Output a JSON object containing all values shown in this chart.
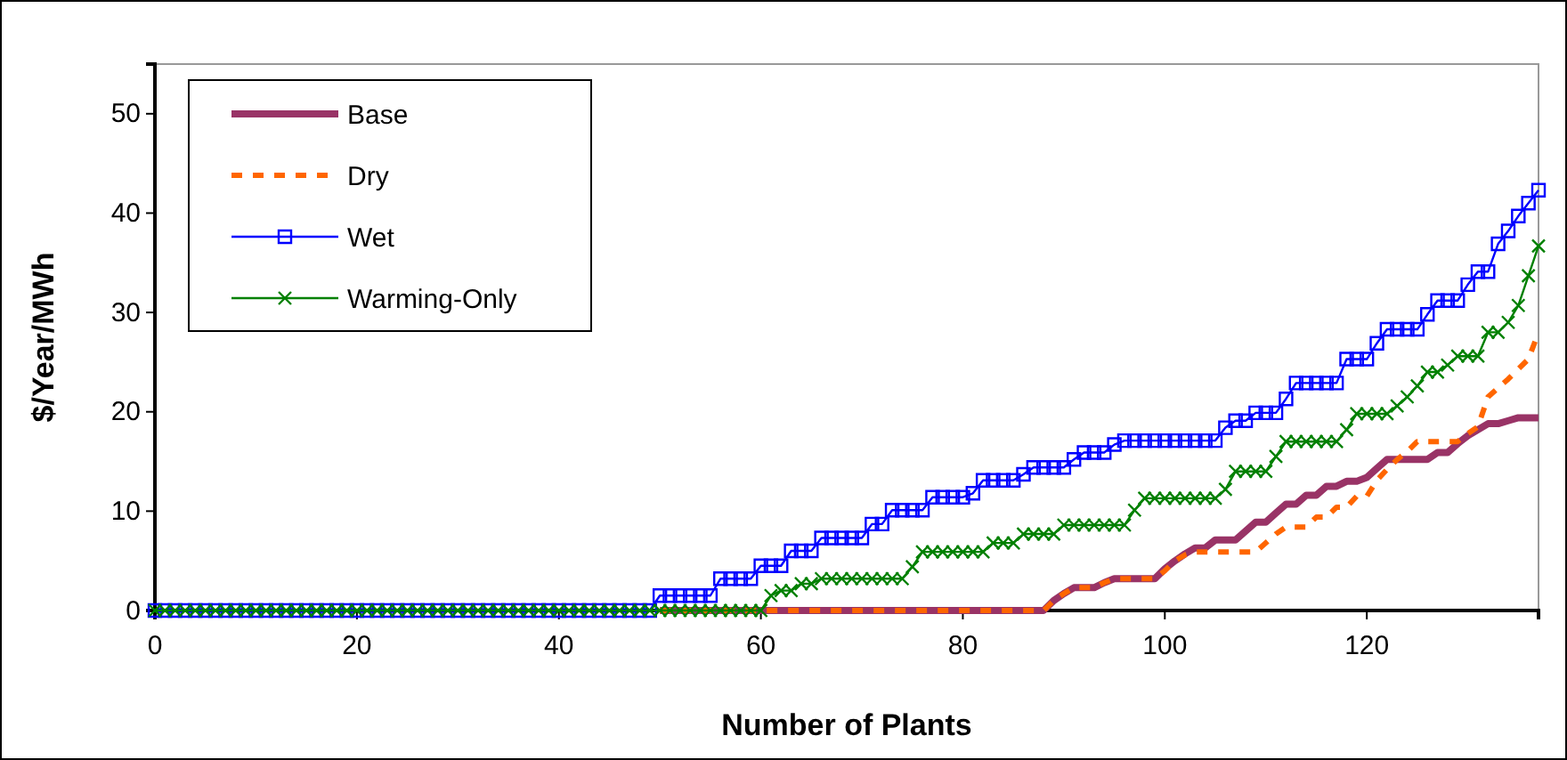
{
  "chart_data": {
    "type": "line",
    "xlabel": "Number of Plants",
    "ylabel": "$/Year/MWh",
    "x": [
      0,
      1,
      2,
      3,
      4,
      5,
      6,
      7,
      8,
      9,
      10,
      11,
      12,
      13,
      14,
      15,
      16,
      17,
      18,
      19,
      20,
      21,
      22,
      23,
      24,
      25,
      26,
      27,
      28,
      29,
      30,
      31,
      32,
      33,
      34,
      35,
      36,
      37,
      38,
      39,
      40,
      41,
      42,
      43,
      44,
      45,
      46,
      47,
      48,
      49,
      50,
      51,
      52,
      53,
      54,
      55,
      56,
      57,
      58,
      59,
      60,
      61,
      62,
      63,
      64,
      65,
      66,
      67,
      68,
      69,
      70,
      71,
      72,
      73,
      74,
      75,
      76,
      77,
      78,
      79,
      80,
      81,
      82,
      83,
      84,
      85,
      86,
      87,
      88,
      89,
      90,
      91,
      92,
      93,
      94,
      95,
      96,
      97,
      98,
      99,
      100,
      101,
      102,
      103,
      104,
      105,
      106,
      107,
      108,
      109,
      110,
      111,
      112,
      113,
      114,
      115,
      116,
      117,
      118,
      119,
      120,
      121,
      122,
      123,
      124,
      125,
      126,
      127,
      128,
      129,
      130,
      131,
      132,
      133,
      134,
      135,
      136,
      137
    ],
    "xlim": [
      0,
      137
    ],
    "xticks": [
      0,
      20,
      40,
      60,
      80,
      100,
      120
    ],
    "ylim": [
      0,
      55
    ],
    "yticks": [
      0,
      10,
      20,
      30,
      40,
      50
    ],
    "grid": false,
    "legend": "top left",
    "series": [
      {
        "name": "Base",
        "color": "#993366",
        "line_style": "solid",
        "marker": "none",
        "values": [
          null,
          null,
          null,
          null,
          null,
          null,
          null,
          null,
          null,
          null,
          null,
          null,
          null,
          null,
          null,
          null,
          null,
          null,
          null,
          null,
          null,
          null,
          null,
          null,
          null,
          null,
          null,
          null,
          null,
          null,
          null,
          null,
          null,
          null,
          null,
          null,
          null,
          null,
          null,
          null,
          null,
          null,
          null,
          null,
          null,
          null,
          null,
          null,
          null,
          null,
          0,
          0,
          0,
          0,
          0,
          0,
          0,
          0,
          0,
          0,
          0,
          0,
          0,
          0,
          0,
          0,
          0,
          0,
          0,
          0,
          0,
          0,
          0,
          0,
          0,
          0,
          0,
          0,
          0,
          0,
          0,
          0,
          0,
          0,
          0,
          0,
          0,
          0,
          0,
          1,
          1.7,
          2.3,
          2.3,
          2.3,
          2.8,
          3.2,
          3.2,
          3.2,
          3.2,
          3.2,
          4.2,
          5,
          5.7,
          6.3,
          6.3,
          7.1,
          7.1,
          7.1,
          8,
          8.9,
          8.9,
          9.8,
          10.7,
          10.7,
          11.6,
          11.6,
          12.5,
          12.5,
          13,
          13,
          13.4,
          14.3,
          15.2,
          15.2,
          15.2,
          15.2,
          15.2,
          15.9,
          15.9,
          16.8,
          17.6,
          18.2,
          18.8,
          18.8,
          19.1,
          19.4,
          19.4,
          19.4
        ]
      },
      {
        "name": "Dry",
        "color": "#ff6600",
        "line_style": "dashed",
        "marker": "none",
        "values": [
          null,
          null,
          null,
          null,
          null,
          null,
          null,
          null,
          null,
          null,
          null,
          null,
          null,
          null,
          null,
          null,
          null,
          null,
          null,
          null,
          null,
          null,
          null,
          null,
          null,
          null,
          null,
          null,
          null,
          null,
          null,
          null,
          null,
          null,
          null,
          null,
          null,
          null,
          null,
          null,
          null,
          null,
          null,
          null,
          null,
          null,
          null,
          null,
          null,
          null,
          0,
          0,
          0,
          0,
          0,
          0,
          0,
          0,
          0,
          0,
          0,
          0,
          0,
          0,
          0,
          0,
          0,
          0,
          0,
          0,
          0,
          0,
          0,
          0,
          0,
          0,
          0,
          0,
          0,
          0,
          0,
          0,
          0,
          0,
          0,
          0,
          0,
          0,
          0,
          1,
          1.7,
          2.3,
          2.3,
          2.3,
          2.8,
          3.2,
          3.2,
          3.2,
          3.2,
          3.2,
          4,
          5,
          5.6,
          5.9,
          5.9,
          5.9,
          5.9,
          5.9,
          5.9,
          5.9,
          6.8,
          7.7,
          8.4,
          8.4,
          8.4,
          9.4,
          9.4,
          10.4,
          10.4,
          11.5,
          11.5,
          13.1,
          14.2,
          15.2,
          16,
          17,
          17,
          17,
          17,
          17,
          17.8,
          18.5,
          21.5,
          22.4,
          23.3,
          24.3,
          25.3,
          28
        ]
      },
      {
        "name": "Wet",
        "color": "#0000ff",
        "line_style": "solid",
        "marker": "square",
        "values": [
          0,
          0,
          0,
          0,
          0,
          0,
          0,
          0,
          0,
          0,
          0,
          0,
          0,
          0,
          0,
          0,
          0,
          0,
          0,
          0,
          0,
          0,
          0,
          0,
          0,
          0,
          0,
          0,
          0,
          0,
          0,
          0,
          0,
          0,
          0,
          0,
          0,
          0,
          0,
          0,
          0,
          0,
          0,
          0,
          0,
          0,
          0,
          0,
          0,
          0,
          1.5,
          1.5,
          1.5,
          1.5,
          1.5,
          1.5,
          3.2,
          3.2,
          3.2,
          3.2,
          4.5,
          4.5,
          4.5,
          6,
          6,
          6,
          7.3,
          7.3,
          7.3,
          7.3,
          7.3,
          8.7,
          8.7,
          10.1,
          10.1,
          10.1,
          10.1,
          11.4,
          11.4,
          11.4,
          11.4,
          11.8,
          13.1,
          13.1,
          13.1,
          13.1,
          13.7,
          14.4,
          14.4,
          14.4,
          14.4,
          15.2,
          15.9,
          15.9,
          15.9,
          16.7,
          17.1,
          17.1,
          17.1,
          17.1,
          17.1,
          17.1,
          17.1,
          17.1,
          17.1,
          17.1,
          18.4,
          19.1,
          19.1,
          19.9,
          19.9,
          19.9,
          21.3,
          22.9,
          22.9,
          22.9,
          22.9,
          22.9,
          25.3,
          25.3,
          25.3,
          26.9,
          28.3,
          28.3,
          28.3,
          28.3,
          29.8,
          31.2,
          31.2,
          31.2,
          32.8,
          34.1,
          34.1,
          36.9,
          38.2,
          39.7,
          41,
          42.3
        ]
      },
      {
        "name": "Warming-Only",
        "color": "#008000",
        "line_style": "solid",
        "marker": "cross",
        "values": [
          0,
          0,
          0,
          0,
          0,
          0,
          0,
          0,
          0,
          0,
          0,
          0,
          0,
          0,
          0,
          0,
          0,
          0,
          0,
          0,
          0,
          0,
          0,
          0,
          0,
          0,
          0,
          0,
          0,
          0,
          0,
          0,
          0,
          0,
          0,
          0,
          0,
          0,
          0,
          0,
          0,
          0,
          0,
          0,
          0,
          0,
          0,
          0,
          0,
          0,
          0,
          0,
          0,
          0,
          0,
          0,
          0,
          0,
          0,
          0,
          0,
          1.5,
          2,
          2,
          2.7,
          2.7,
          3.2,
          3.2,
          3.2,
          3.2,
          3.2,
          3.2,
          3.2,
          3.2,
          3.2,
          4.4,
          5.9,
          5.9,
          5.9,
          5.9,
          5.9,
          5.9,
          5.9,
          6.8,
          6.8,
          6.8,
          7.7,
          7.7,
          7.7,
          7.7,
          8.6,
          8.6,
          8.6,
          8.6,
          8.6,
          8.6,
          8.6,
          10.1,
          11.3,
          11.3,
          11.3,
          11.3,
          11.3,
          11.3,
          11.3,
          11.3,
          12.2,
          14,
          14,
          14,
          14,
          15.5,
          17,
          17,
          17,
          17,
          17,
          17,
          18.2,
          19.8,
          19.8,
          19.8,
          19.8,
          20.6,
          21.5,
          22.6,
          24,
          24,
          24.7,
          25.6,
          25.6,
          25.6,
          28,
          28,
          29,
          30.7,
          33.7,
          36.7
        ]
      }
    ]
  }
}
